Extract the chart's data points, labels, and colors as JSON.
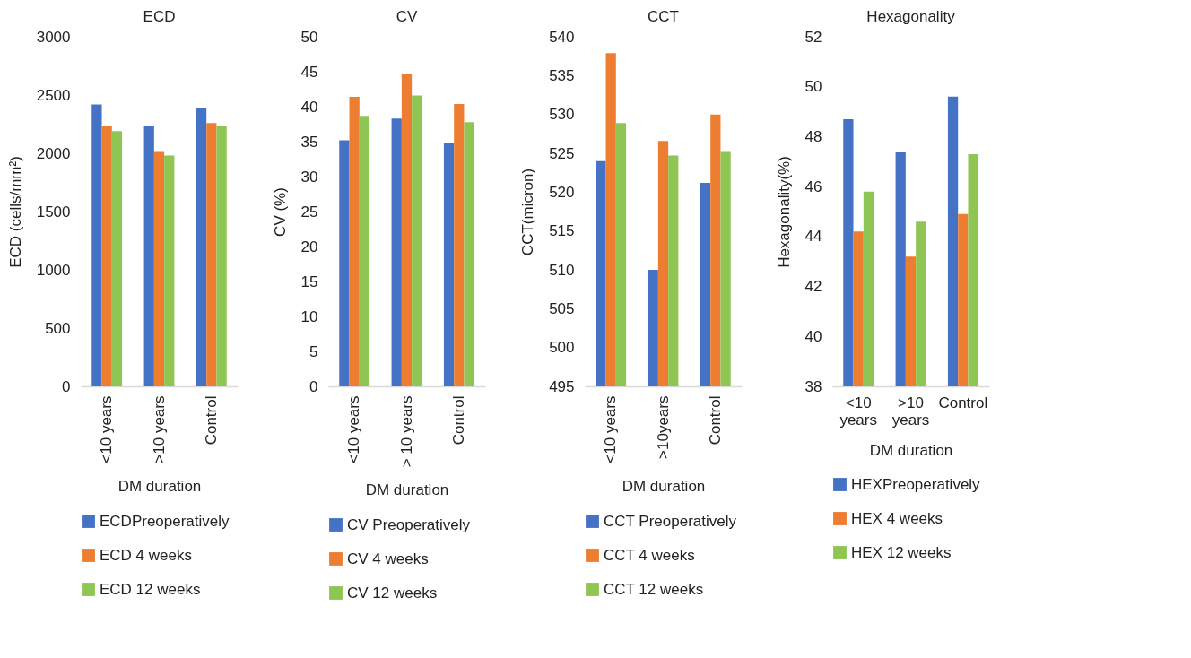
{
  "chart_data": [
    {
      "type": "bar",
      "title": "ECD",
      "xlabel": "DM duration",
      "ylabel": "ECD (cells/mm²)",
      "categories": [
        "<10 years",
        ">10 years",
        "Control"
      ],
      "ylim": [
        0,
        3000
      ],
      "yticks": [
        0,
        500,
        1000,
        1500,
        2000,
        2500,
        3000
      ],
      "legend": "bottom",
      "series": [
        {
          "name": "ECDPreoperatively",
          "color": "#4472c4",
          "values": [
            2420,
            2230,
            2390
          ]
        },
        {
          "name": "ECD 4 weeks",
          "color": "#ed7d31",
          "values": [
            2230,
            2020,
            2260
          ]
        },
        {
          "name": "ECD 12 weeks",
          "color": "#8fc653",
          "values": [
            2190,
            1980,
            2230
          ]
        }
      ]
    },
    {
      "type": "bar",
      "title": "CV",
      "xlabel": "DM duration",
      "ylabel": "CV (%)",
      "categories": [
        "<10 years",
        "> 10 years",
        "Control"
      ],
      "ylim": [
        0,
        50
      ],
      "yticks": [
        0,
        5,
        10,
        15,
        20,
        25,
        30,
        35,
        40,
        45,
        50
      ],
      "legend": "bottom",
      "series": [
        {
          "name": "CV Preoperatively",
          "color": "#4472c4",
          "values": [
            35.2,
            38.3,
            34.8
          ]
        },
        {
          "name": "CV 4 weeks",
          "color": "#ed7d31",
          "values": [
            41.4,
            44.6,
            40.4
          ]
        },
        {
          "name": "CV 12 weeks",
          "color": "#8fc653",
          "values": [
            38.7,
            41.6,
            37.8
          ]
        }
      ]
    },
    {
      "type": "bar",
      "title": "CCT",
      "xlabel": "DM duration",
      "ylabel": "CCT(micron)",
      "categories": [
        "<10 years",
        ">10years",
        "Control"
      ],
      "ylim": [
        495,
        540
      ],
      "yticks": [
        495,
        500,
        505,
        510,
        515,
        520,
        525,
        530,
        535,
        540
      ],
      "legend": "bottom",
      "series": [
        {
          "name": "CCT Preoperatively",
          "color": "#4472c4",
          "values": [
            524.0,
            510.0,
            521.2
          ]
        },
        {
          "name": "CCT 4 weeks",
          "color": "#ed7d31",
          "values": [
            537.9,
            526.6,
            530.0
          ]
        },
        {
          "name": "CCT 12 weeks",
          "color": "#8fc653",
          "values": [
            528.9,
            524.7,
            525.3
          ]
        }
      ]
    },
    {
      "type": "bar",
      "title": "Hexagonality",
      "xlabel": "DM duration",
      "ylabel": "Hexagonality(%)",
      "categories": [
        "<10 years",
        ">10 years",
        "Control"
      ],
      "ylim": [
        38,
        52
      ],
      "yticks": [
        38,
        40,
        42,
        44,
        46,
        48,
        50,
        52
      ],
      "legend": "bottom",
      "series": [
        {
          "name": "HEXPreoperatively",
          "color": "#4472c4",
          "values": [
            48.7,
            47.4,
            49.6
          ]
        },
        {
          "name": "HEX 4 weeks",
          "color": "#ed7d31",
          "values": [
            44.2,
            43.2,
            44.9
          ]
        },
        {
          "name": "HEX 12 weeks",
          "color": "#8fc653",
          "values": [
            45.8,
            44.6,
            47.3
          ]
        }
      ]
    }
  ]
}
